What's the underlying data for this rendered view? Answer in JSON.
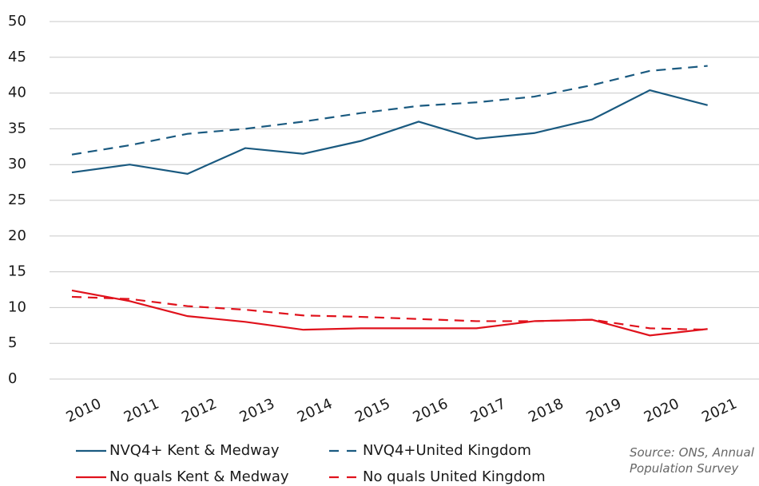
{
  "chart_data": {
    "type": "line",
    "categories": [
      "2010",
      "2011",
      "2012",
      "2013",
      "2014",
      "2015",
      "2016",
      "2017",
      "2018",
      "2019",
      "2020",
      "2021"
    ],
    "series": [
      {
        "name": "NVQ4+ Kent & Medway",
        "color": "#1a5a80",
        "linestyle": "solid",
        "values": [
          28.9,
          30.0,
          28.7,
          32.3,
          31.5,
          33.3,
          36.0,
          33.6,
          34.4,
          36.3,
          40.4,
          38.3
        ]
      },
      {
        "name": "NVQ4+United Kingdom",
        "color": "#1a5a80",
        "linestyle": "dashed",
        "values": [
          31.4,
          32.7,
          34.3,
          35.0,
          36.0,
          37.2,
          38.2,
          38.7,
          39.5,
          41.1,
          43.1,
          43.8
        ]
      },
      {
        "name": "No quals Kent & Medway",
        "color": "#e0121c",
        "linestyle": "solid",
        "values": [
          12.4,
          10.9,
          8.8,
          8.0,
          6.9,
          7.1,
          7.1,
          7.1,
          8.1,
          8.3,
          6.1,
          7.0
        ]
      },
      {
        "name": "No quals United Kingdom",
        "color": "#e0121c",
        "linestyle": "dashed",
        "values": [
          11.5,
          11.2,
          10.2,
          9.7,
          8.9,
          8.7,
          8.4,
          8.1,
          8.1,
          8.3,
          7.1,
          6.9
        ]
      }
    ],
    "ylim": [
      0,
      50
    ],
    "yticks": [
      0,
      5,
      10,
      15,
      20,
      25,
      30,
      35,
      40,
      45,
      50
    ],
    "grid": true,
    "source": "Source: ONS, Annual Population Survey"
  }
}
